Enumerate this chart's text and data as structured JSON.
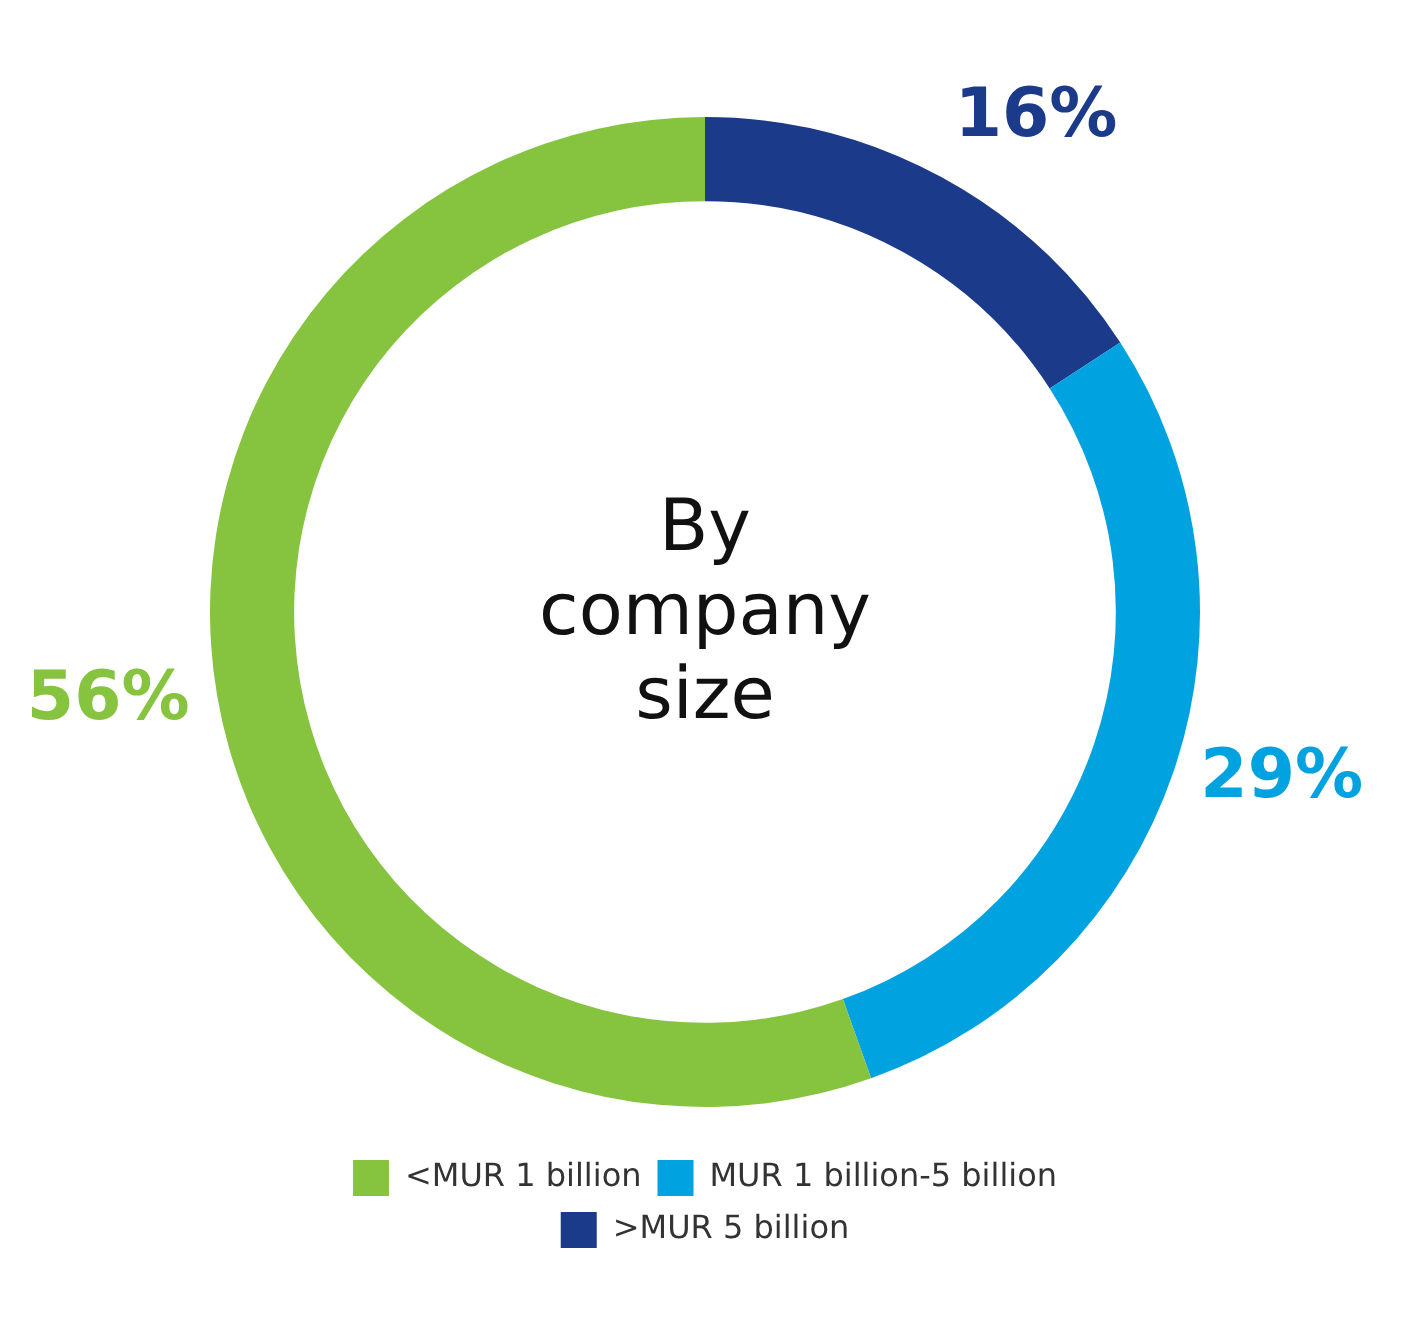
{
  "chart_data": {
    "type": "donut",
    "title": "By company size",
    "categories": [
      ">MUR 5 billion",
      "MUR 1 billion-5 billion",
      "<MUR 1 billion"
    ],
    "values": [
      16,
      29,
      56
    ],
    "colors": [
      "#1b3a8a",
      "#00a3e0",
      "#86c440"
    ],
    "value_labels": [
      "16%",
      "29%",
      "56%"
    ],
    "legend": "bottom"
  }
}
